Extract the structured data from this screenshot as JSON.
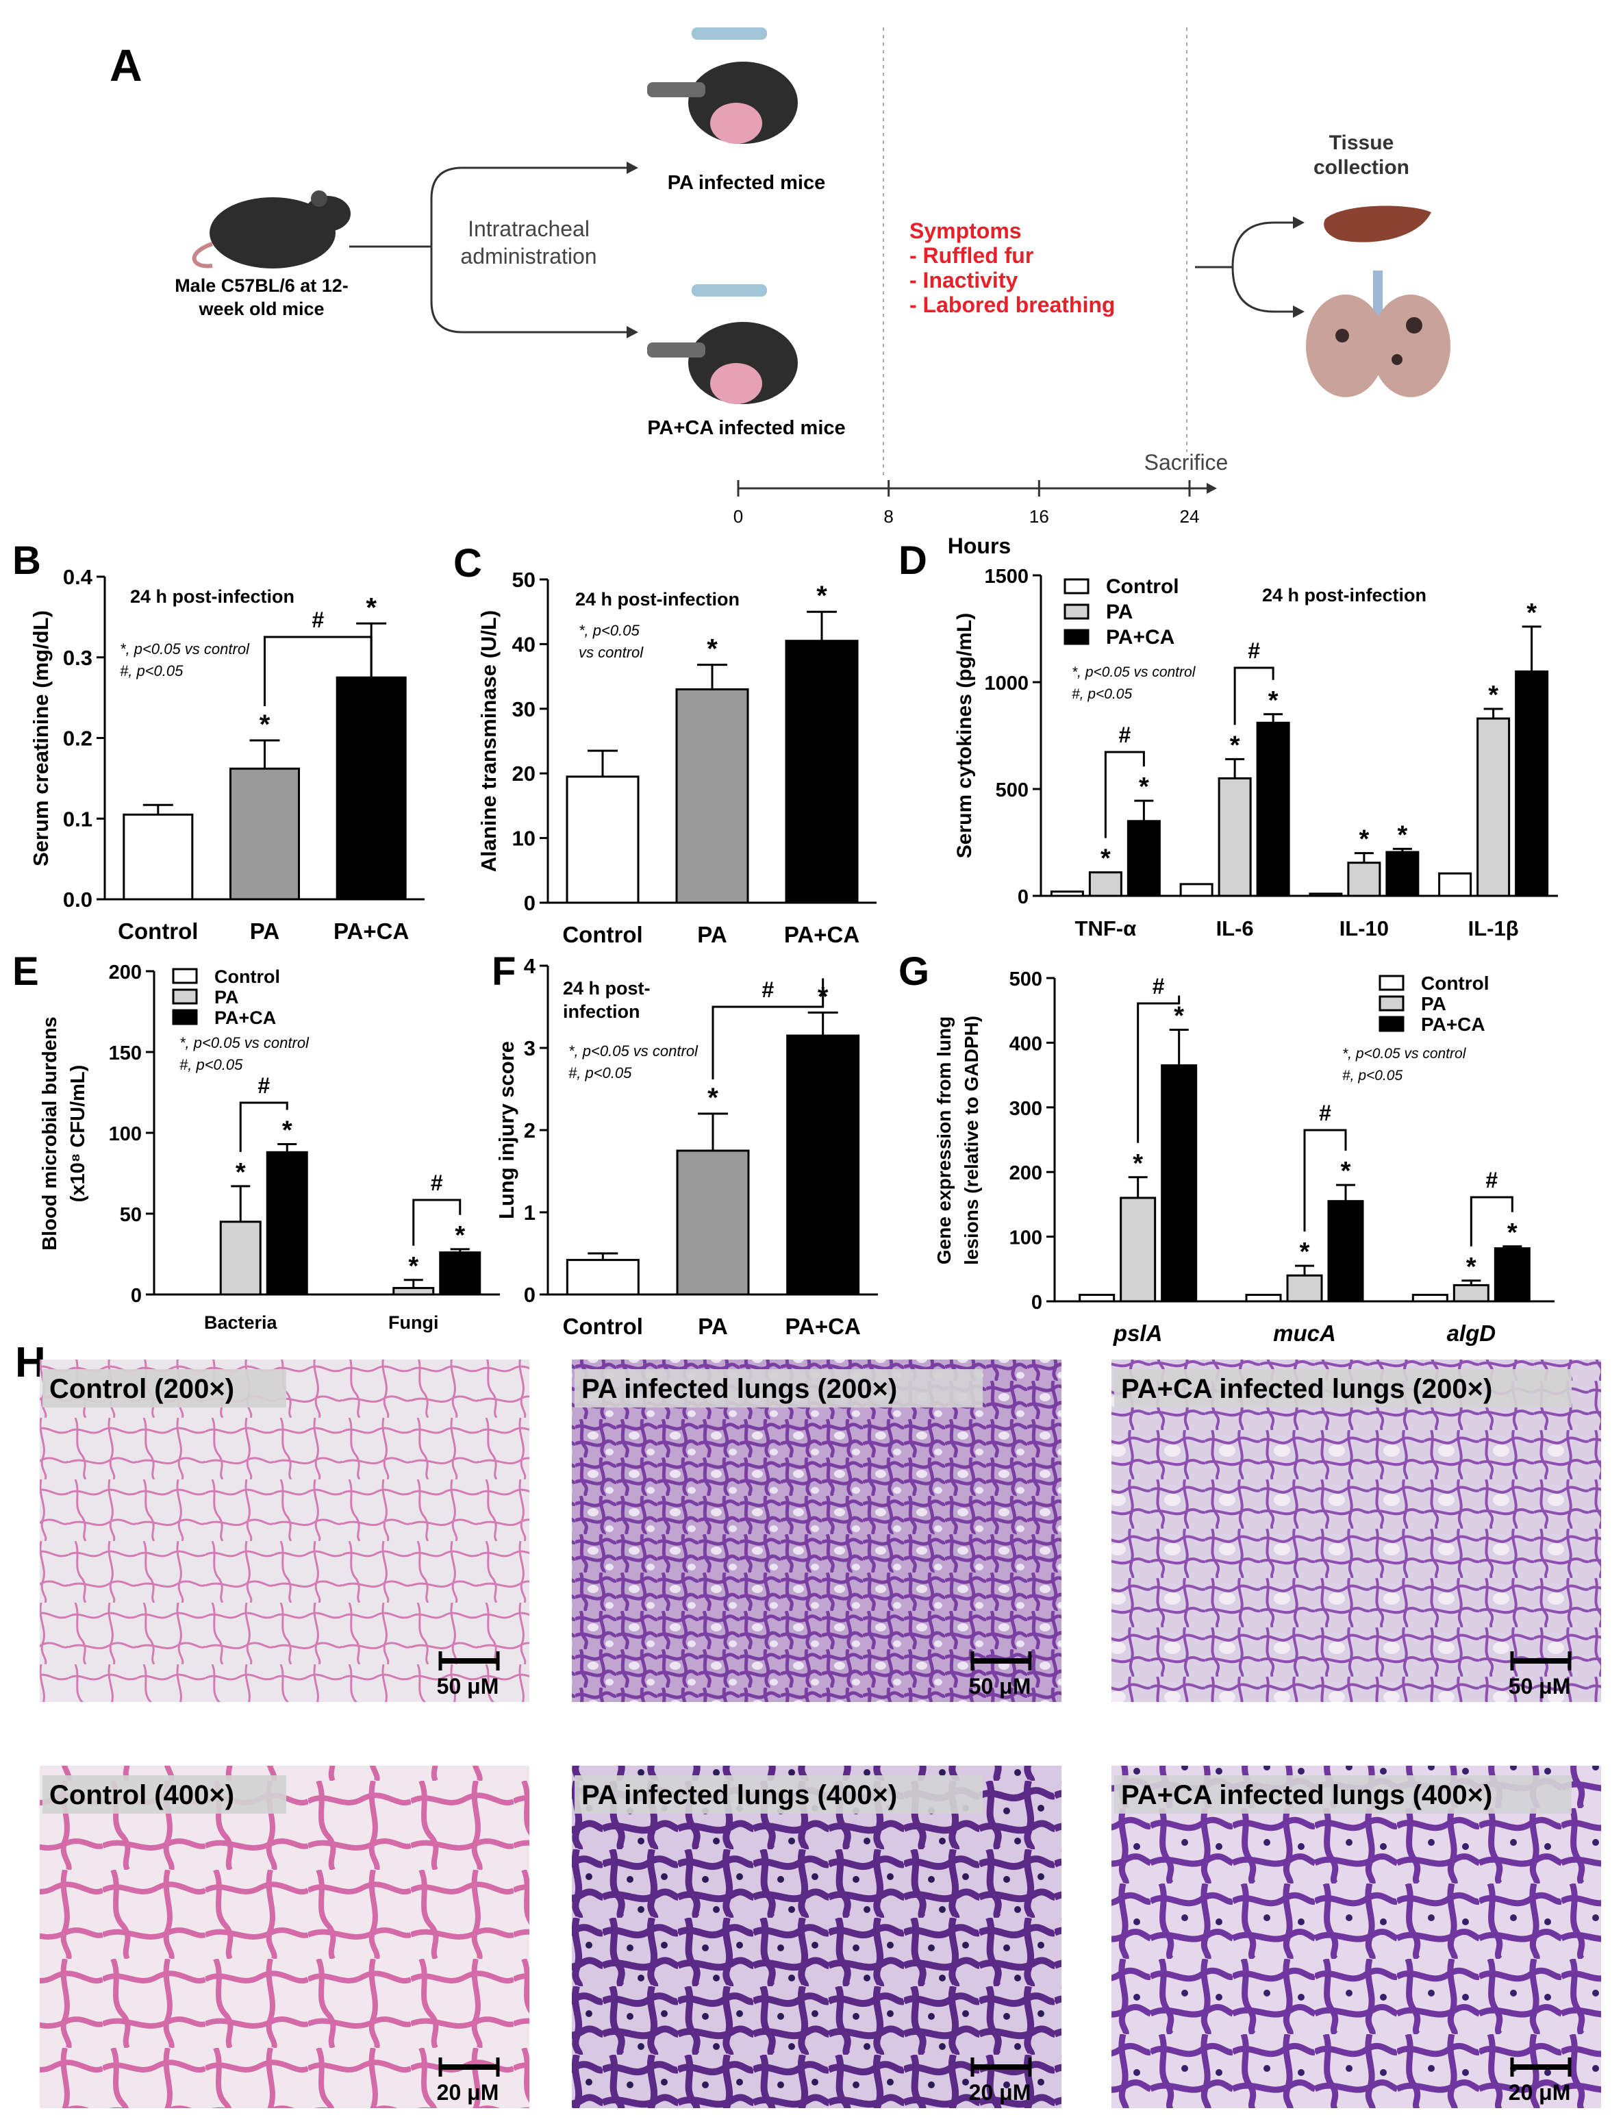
{
  "panel_a": {
    "letter": "A",
    "mouse_label_1": "Male C57BL/6 at 12-",
    "mouse_label_2": "week old mice",
    "route_1": "Intratracheal",
    "route_2": "administration",
    "group_pa": "PA infected mice",
    "group_paca": "PA+CA infected mice",
    "symptoms_title": "Symptoms",
    "symptom_1": "- Ruffled fur",
    "symptom_2": "- Inactivity",
    "symptom_3": "- Labored breathing",
    "tissue_1": "Tissue",
    "tissue_2": "collection",
    "sacrifice": "Sacrifice",
    "timeline_ticks": [
      "0",
      "8",
      "16",
      "24"
    ],
    "timeline_unit": "Hours",
    "colors": {
      "symptoms": "#e8202a",
      "mouse": "#2d2d2d",
      "liver": "#8a4330",
      "lung": "#c9a39a"
    }
  },
  "chart_data": [
    {
      "panel": "B",
      "type": "bar",
      "annotation": "24 h post-infection",
      "note_1": "*, p<0.05 vs control",
      "note_2": "#, p<0.05",
      "ylabel": "Serum creatinine (mg/dL)",
      "ylim": [
        0,
        0.4
      ],
      "yticks": [
        "0.0",
        "0.1",
        "0.2",
        "0.3",
        "0.4"
      ],
      "categories": [
        "Control",
        "PA",
        "PA+CA"
      ],
      "values": [
        0.105,
        0.162,
        0.275
      ],
      "errors": [
        0.012,
        0.035,
        0.067
      ],
      "colors": [
        "#ffffff",
        "#9a9a9a",
        "#000000"
      ],
      "stars": [
        "",
        "*",
        "*"
      ],
      "hash": "#"
    },
    {
      "panel": "C",
      "type": "bar",
      "annotation": "24 h post-infection",
      "note_1": "*, p<0.05",
      "note_2": "vs control",
      "ylabel": "Alanine transminase (U/L)",
      "ylim": [
        0,
        50
      ],
      "yticks": [
        "0",
        "10",
        "20",
        "30",
        "40",
        "50"
      ],
      "categories": [
        "Control",
        "PA",
        "PA+CA"
      ],
      "values": [
        19.5,
        33,
        40.5
      ],
      "errors": [
        4,
        3.8,
        4.5
      ],
      "colors": [
        "#ffffff",
        "#9a9a9a",
        "#000000"
      ],
      "stars": [
        "",
        "*",
        "*"
      ]
    },
    {
      "panel": "D",
      "type": "bar",
      "annotation": "24 h post-infection",
      "note_1": "*, p<0.05 vs control",
      "note_2": "#, p<0.05",
      "ylabel": "Serum cytokines (pg/mL)",
      "ylim": [
        0,
        1500
      ],
      "yticks": [
        "0",
        "500",
        "1000",
        "1500"
      ],
      "categories": [
        "TNF-α",
        "IL-6",
        "IL-10",
        "IL-1β"
      ],
      "series": [
        {
          "name": "Control",
          "color": "#ffffff",
          "values": [
            20,
            55,
            10,
            105
          ],
          "errors": [
            0,
            0,
            0,
            0
          ],
          "stars": [
            "",
            "",
            "",
            ""
          ]
        },
        {
          "name": "PA",
          "color": "#d2d2d2",
          "values": [
            110,
            550,
            155,
            830
          ],
          "errors": [
            0,
            90,
            45,
            45
          ],
          "stars": [
            "*",
            "*",
            "*",
            "*"
          ]
        },
        {
          "name": "PA+CA",
          "color": "#000000",
          "values": [
            350,
            810,
            205,
            1050
          ],
          "errors": [
            95,
            40,
            15,
            210
          ],
          "stars": [
            "*",
            "*",
            "*",
            "*"
          ]
        }
      ],
      "hash": "#"
    },
    {
      "panel": "E",
      "type": "bar",
      "note_1": "*, p<0.05 vs control",
      "note_2": "#, p<0.05",
      "ylabel_1": "Blood microbial burdens",
      "ylabel_2": "(x10⁸ CFU/mL)",
      "ylim": [
        0,
        200
      ],
      "yticks": [
        "0",
        "50",
        "100",
        "150",
        "200"
      ],
      "categories": [
        "Bacteria",
        "Fungi"
      ],
      "series": [
        {
          "name": "Control",
          "color": "#ffffff",
          "values": [
            0,
            0
          ],
          "errors": [
            0,
            0
          ],
          "stars": [
            "",
            ""
          ]
        },
        {
          "name": "PA",
          "color": "#d2d2d2",
          "values": [
            45,
            4
          ],
          "errors": [
            22,
            5
          ],
          "stars": [
            "*",
            "*"
          ]
        },
        {
          "name": "PA+CA",
          "color": "#000000",
          "values": [
            88,
            26
          ],
          "errors": [
            5,
            2
          ],
          "stars": [
            "*",
            "*"
          ]
        }
      ],
      "hash": "#"
    },
    {
      "panel": "F",
      "type": "bar",
      "annotation_1": "24 h post-",
      "annotation_2": "infection",
      "note_1": "*, p<0.05 vs control",
      "note_2": "#, p<0.05",
      "ylabel": "Lung injury score",
      "ylim": [
        0,
        4
      ],
      "yticks": [
        "0",
        "1",
        "2",
        "3",
        "4"
      ],
      "categories": [
        "Control",
        "PA",
        "PA+CA"
      ],
      "values": [
        0.42,
        1.75,
        3.15
      ],
      "errors": [
        0.08,
        0.45,
        0.28
      ],
      "colors": [
        "#ffffff",
        "#9a9a9a",
        "#000000"
      ],
      "stars": [
        "",
        "*",
        "*"
      ],
      "hash": "#"
    },
    {
      "panel": "G",
      "type": "bar",
      "note_1": "*, p<0.05 vs control",
      "note_2": "#, p<0.05",
      "ylabel_1": "Gene expression from lung",
      "ylabel_2": "lesions (relative to GADPH)",
      "ylim": [
        0,
        500
      ],
      "yticks": [
        "0",
        "100",
        "200",
        "300",
        "400",
        "500"
      ],
      "categories": [
        "pslA",
        "mucA",
        "algD"
      ],
      "series": [
        {
          "name": "Control",
          "color": "#ffffff",
          "values": [
            10,
            10,
            10
          ],
          "errors": [
            0,
            0,
            0
          ],
          "stars": [
            "",
            "",
            ""
          ]
        },
        {
          "name": "PA",
          "color": "#d2d2d2",
          "values": [
            160,
            40,
            25
          ],
          "errors": [
            32,
            15,
            7
          ],
          "stars": [
            "*",
            "*",
            "*"
          ]
        },
        {
          "name": "PA+CA",
          "color": "#000000",
          "values": [
            365,
            155,
            82
          ],
          "errors": [
            55,
            25,
            3
          ],
          "stars": [
            "*",
            "*",
            "*"
          ]
        }
      ],
      "hash": "#"
    }
  ],
  "panel_h": {
    "letter": "H",
    "images": [
      {
        "title": "Control (200×)",
        "scale": "50 μM",
        "density": "low",
        "zoom": "200"
      },
      {
        "title": "PA infected lungs (200×)",
        "scale": "50 μM",
        "density": "high",
        "zoom": "200"
      },
      {
        "title": "PA+CA infected lungs (200×)",
        "scale": "50 μM",
        "density": "mid",
        "zoom": "200"
      },
      {
        "title": "Control (400×)",
        "scale": "20 μM",
        "density": "low",
        "zoom": "400"
      },
      {
        "title": "PA infected lungs (400×)",
        "scale": "20 μM",
        "density": "high",
        "zoom": "400"
      },
      {
        "title": "PA+CA infected lungs (400×)",
        "scale": "20 μM",
        "density": "mid",
        "zoom": "400"
      }
    ]
  }
}
